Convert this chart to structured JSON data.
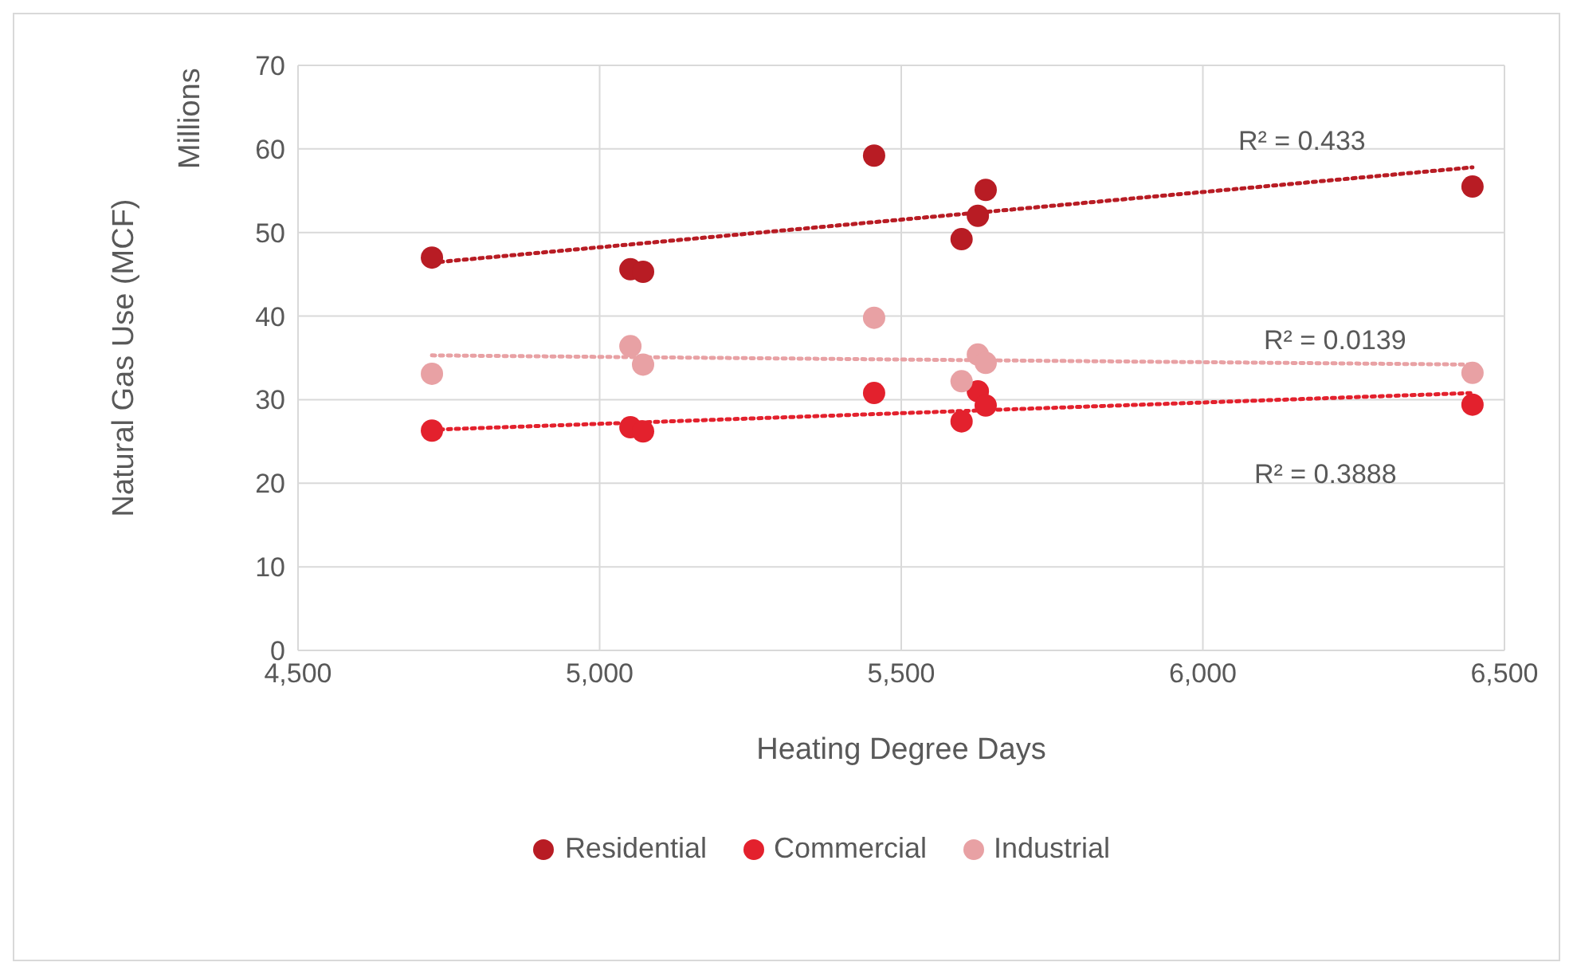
{
  "chart_data": {
    "type": "scatter",
    "xlabel": "Heating Degree Days",
    "ylabel": "Natural Gas Use (MCF)",
    "xlim": [
      4500,
      6500
    ],
    "xticks": [
      {
        "value": 4500,
        "label": "4,500"
      },
      {
        "value": 5000,
        "label": "5,000"
      },
      {
        "value": 5500,
        "label": "5,500"
      },
      {
        "value": 6000,
        "label": "6,000"
      },
      {
        "value": 6500,
        "label": "6,500"
      }
    ],
    "ylim": [
      0,
      70
    ],
    "yticks": [
      0,
      10,
      20,
      30,
      40,
      50,
      60,
      70
    ],
    "grid": true,
    "legend": "bottom",
    "marker": "circle",
    "series": [
      {
        "name": "Residential",
        "color": "#b81c24",
        "x": [
          4722,
          5051,
          5072,
          5455,
          5600,
          5627,
          5640,
          6447
        ],
        "values": [
          47.0,
          45.6,
          45.3,
          59.2,
          49.2,
          52.0,
          55.1,
          55.5
        ]
      },
      {
        "name": "Commercial",
        "color": "#e3212d",
        "x": [
          4722,
          5051,
          5072,
          5455,
          5600,
          5627,
          5640,
          6447
        ],
        "values": [
          26.3,
          26.7,
          26.2,
          30.8,
          27.4,
          31.0,
          29.3,
          29.4
        ]
      },
      {
        "name": "Industrial",
        "color": "#e8a1a4",
        "x": [
          4722,
          5051,
          5072,
          5455,
          5600,
          5627,
          5640,
          6447
        ],
        "values": [
          33.1,
          36.4,
          34.2,
          39.8,
          32.2,
          35.4,
          34.4,
          33.2
        ]
      },
      {
        "type": "line",
        "color": "#b81c24",
        "line_style": "dotted",
        "marker": "none",
        "x": [
          4722,
          6447
        ],
        "values": [
          46.4,
          57.8
        ]
      },
      {
        "type": "line",
        "color": "#e3212d",
        "line_style": "dotted",
        "marker": "none",
        "x": [
          4722,
          6447
        ],
        "values": [
          26.4,
          30.8
        ]
      },
      {
        "type": "line",
        "color": "#e8a1a4",
        "line_style": "dotted",
        "marker": "none",
        "x": [
          4722,
          6447
        ],
        "values": [
          35.3,
          34.2
        ]
      }
    ],
    "annotations": [
      "Millions",
      "R² = 0.433",
      "R² = 0.0139",
      "R² = 0.3888"
    ]
  }
}
